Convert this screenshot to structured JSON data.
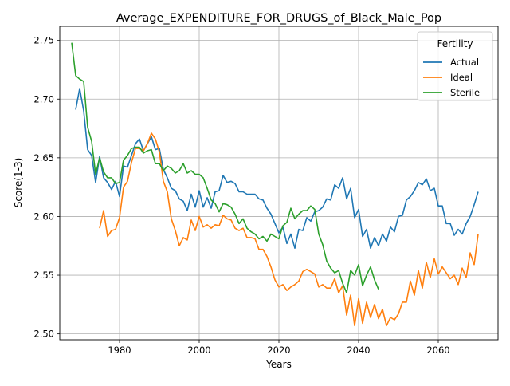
{
  "chart_data": {
    "type": "line",
    "title": "Average_EXPENDITURE_FOR_DRUGS_of_Black_Male_Pop",
    "xlabel": "Years",
    "ylabel": "Score(1-3)",
    "xlim": [
      1965,
      2075
    ],
    "ylim": [
      2.495,
      2.762
    ],
    "x_ticks": [
      1980,
      2000,
      2020,
      2040,
      2060
    ],
    "x_tick_labels": [
      "1980",
      "2000",
      "2020",
      "2040",
      "2060"
    ],
    "y_ticks": [
      2.5,
      2.55,
      2.6,
      2.65,
      2.7,
      2.75
    ],
    "y_tick_labels": [
      "2.50",
      "2.55",
      "2.60",
      "2.65",
      "2.70",
      "2.75"
    ],
    "grid": true,
    "legend": {
      "title": "Fertility",
      "placement": "top-right"
    },
    "series": [
      {
        "name": "Actual",
        "color": "#1f77b4",
        "x": [
          1969,
          1970,
          1971,
          1972,
          1973,
          1974,
          1975,
          1976,
          1977,
          1978,
          1979,
          1980,
          1981,
          1982,
          1983,
          1984,
          1985,
          1986,
          1987,
          1988,
          1989,
          1990,
          1991,
          1992,
          1993,
          1994,
          1995,
          1996,
          1997,
          1998,
          1999,
          2000,
          2001,
          2002,
          2003,
          2004,
          2005,
          2006,
          2007,
          2008,
          2009,
          2010,
          2011,
          2012,
          2013,
          2014,
          2015,
          2016,
          2017,
          2018,
          2019,
          2020,
          2021,
          2022,
          2023,
          2024,
          2025,
          2026,
          2027,
          2028,
          2029,
          2030,
          2031,
          2032,
          2033,
          2034,
          2035,
          2036,
          2037,
          2038,
          2039,
          2040,
          2041,
          2042,
          2043,
          2044,
          2045,
          2046,
          2047,
          2048,
          2049,
          2050,
          2051,
          2052,
          2053,
          2054,
          2055,
          2056,
          2057,
          2058,
          2059,
          2060,
          2061,
          2062,
          2063,
          2064,
          2065,
          2066,
          2067,
          2068,
          2069,
          2070
        ],
        "values": [
          2.691,
          2.709,
          2.69,
          2.657,
          2.652,
          2.629,
          2.651,
          2.633,
          2.629,
          2.623,
          2.63,
          2.617,
          2.643,
          2.642,
          2.652,
          2.662,
          2.666,
          2.656,
          2.662,
          2.668,
          2.657,
          2.658,
          2.64,
          2.633,
          2.624,
          2.622,
          2.615,
          2.613,
          2.605,
          2.619,
          2.608,
          2.622,
          2.608,
          2.616,
          2.607,
          2.621,
          2.622,
          2.635,
          2.629,
          2.63,
          2.628,
          2.621,
          2.621,
          2.619,
          2.619,
          2.619,
          2.615,
          2.614,
          2.607,
          2.602,
          2.594,
          2.586,
          2.591,
          2.577,
          2.585,
          2.573,
          2.589,
          2.588,
          2.599,
          2.596,
          2.604,
          2.605,
          2.608,
          2.615,
          2.614,
          2.627,
          2.624,
          2.633,
          2.615,
          2.624,
          2.599,
          2.606,
          2.583,
          2.589,
          2.573,
          2.582,
          2.575,
          2.585,
          2.579,
          2.591,
          2.587,
          2.6,
          2.601,
          2.614,
          2.617,
          2.622,
          2.629,
          2.627,
          2.632,
          2.622,
          2.624,
          2.609,
          2.609,
          2.594,
          2.594,
          2.584,
          2.589,
          2.585,
          2.594,
          2.6,
          2.61,
          2.621
        ]
      },
      {
        "name": "Ideal",
        "color": "#ff7f0e",
        "x": [
          1975,
          1976,
          1977,
          1978,
          1979,
          1980,
          1981,
          1982,
          1983,
          1984,
          1985,
          1986,
          1987,
          1988,
          1989,
          1990,
          1991,
          1992,
          1993,
          1994,
          1995,
          1996,
          1997,
          1998,
          1999,
          2000,
          2001,
          2002,
          2003,
          2004,
          2005,
          2006,
          2007,
          2008,
          2009,
          2010,
          2011,
          2012,
          2013,
          2014,
          2015,
          2016,
          2017,
          2018,
          2019,
          2020,
          2021,
          2022,
          2023,
          2024,
          2025,
          2026,
          2027,
          2028,
          2029,
          2030,
          2031,
          2032,
          2033,
          2034,
          2035,
          2036,
          2037,
          2038,
          2039,
          2040,
          2041,
          2042,
          2043,
          2044,
          2045,
          2046,
          2047,
          2048,
          2049,
          2050,
          2051,
          2052,
          2053,
          2054,
          2055,
          2056,
          2057,
          2058,
          2059,
          2060,
          2061,
          2062,
          2063,
          2064,
          2065,
          2066,
          2067,
          2068,
          2069,
          2070
        ],
        "values": [
          2.59,
          2.605,
          2.583,
          2.588,
          2.589,
          2.599,
          2.625,
          2.63,
          2.646,
          2.658,
          2.658,
          2.656,
          2.662,
          2.671,
          2.666,
          2.655,
          2.63,
          2.621,
          2.598,
          2.588,
          2.575,
          2.582,
          2.58,
          2.597,
          2.588,
          2.6,
          2.591,
          2.593,
          2.59,
          2.593,
          2.592,
          2.601,
          2.598,
          2.597,
          2.59,
          2.588,
          2.59,
          2.582,
          2.582,
          2.581,
          2.572,
          2.572,
          2.566,
          2.557,
          2.546,
          2.54,
          2.542,
          2.537,
          2.54,
          2.542,
          2.545,
          2.553,
          2.555,
          2.553,
          2.551,
          2.54,
          2.542,
          2.539,
          2.539,
          2.547,
          2.535,
          2.541,
          2.516,
          2.533,
          2.507,
          2.53,
          2.509,
          2.527,
          2.514,
          2.525,
          2.513,
          2.521,
          2.507,
          2.514,
          2.512,
          2.517,
          2.527,
          2.527,
          2.545,
          2.533,
          2.554,
          2.539,
          2.561,
          2.548,
          2.564,
          2.551,
          2.557,
          2.552,
          2.547,
          2.55,
          2.542,
          2.556,
          2.548,
          2.569,
          2.559,
          2.585
        ]
      },
      {
        "name": "Sterile",
        "color": "#2ca02c",
        "x": [
          1968,
          1969,
          1970,
          1971,
          1972,
          1973,
          1974,
          1975,
          1976,
          1977,
          1978,
          1979,
          1980,
          1981,
          1982,
          1983,
          1984,
          1985,
          1986,
          1987,
          1988,
          1989,
          1990,
          1991,
          1992,
          1993,
          1994,
          1995,
          1996,
          1997,
          1998,
          1999,
          2000,
          2001,
          2002,
          2003,
          2004,
          2005,
          2006,
          2007,
          2008,
          2009,
          2010,
          2011,
          2012,
          2013,
          2014,
          2015,
          2016,
          2017,
          2018,
          2019,
          2020,
          2021,
          2022,
          2023,
          2024,
          2025,
          2026,
          2027,
          2028,
          2029,
          2030,
          2031,
          2032,
          2033,
          2034,
          2035,
          2036,
          2037,
          2038,
          2039,
          2040,
          2041,
          2042,
          2043,
          2044,
          2045
        ],
        "values": [
          2.748,
          2.72,
          2.717,
          2.715,
          2.676,
          2.664,
          2.636,
          2.65,
          2.638,
          2.633,
          2.633,
          2.628,
          2.629,
          2.648,
          2.652,
          2.658,
          2.659,
          2.659,
          2.654,
          2.656,
          2.657,
          2.645,
          2.645,
          2.639,
          2.643,
          2.641,
          2.637,
          2.639,
          2.645,
          2.637,
          2.639,
          2.636,
          2.636,
          2.633,
          2.624,
          2.614,
          2.611,
          2.604,
          2.611,
          2.61,
          2.608,
          2.602,
          2.594,
          2.598,
          2.59,
          2.587,
          2.585,
          2.581,
          2.583,
          2.579,
          2.585,
          2.583,
          2.581,
          2.592,
          2.595,
          2.607,
          2.598,
          2.602,
          2.605,
          2.605,
          2.609,
          2.606,
          2.585,
          2.576,
          2.562,
          2.556,
          2.552,
          2.554,
          2.543,
          2.535,
          2.554,
          2.55,
          2.559,
          2.541,
          2.55,
          2.557,
          2.546,
          2.538
        ]
      }
    ]
  }
}
